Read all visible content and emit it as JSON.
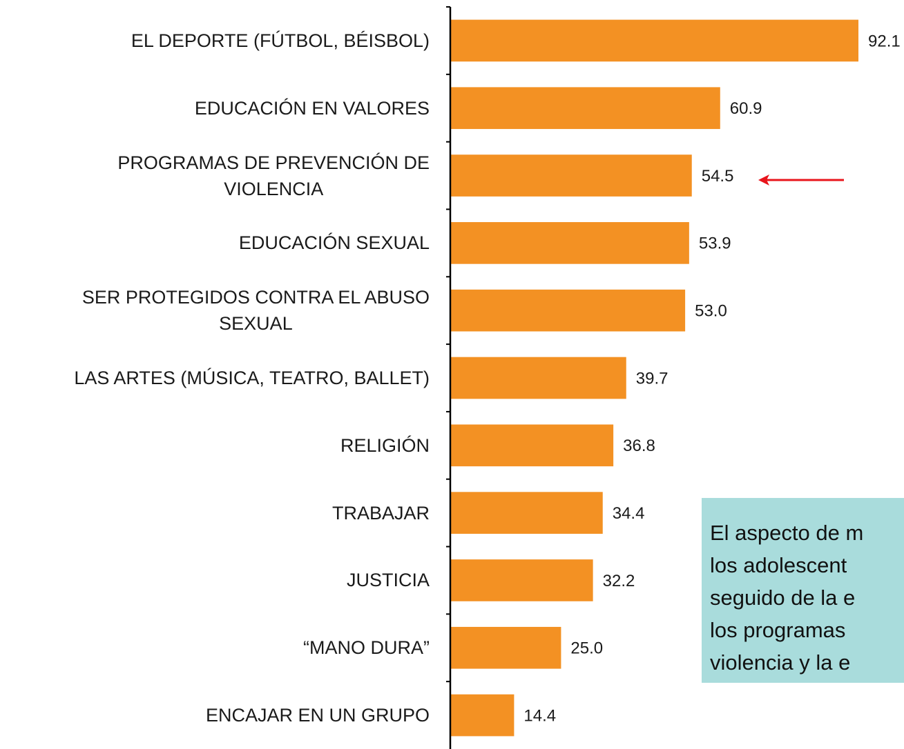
{
  "chart_data": {
    "type": "barh",
    "categories": [
      "EL DEPORTE (FÚTBOL, BÉISBOL)",
      "EDUCACIÓN EN VALORES",
      "PROGRAMAS DE PREVENCIÓN DE\nVIOLENCIA",
      "EDUCACIÓN SEXUAL",
      "SER PROTEGIDOS CONTRA EL ABUSO\nSEXUAL",
      "LAS ARTES (MÚSICA, TEATRO, BALLET)",
      "RELIGIÓN",
      "TRABAJAR",
      "JUSTICIA",
      "“MANO DURA”",
      "ENCAJAR EN UN GRUPO"
    ],
    "values": [
      92.1,
      60.9,
      54.5,
      53.9,
      53.0,
      39.7,
      36.8,
      34.4,
      32.2,
      25.0,
      14.4
    ],
    "value_labels": [
      "92.1",
      "60.9",
      "54.5",
      "53.9",
      "53.0",
      "39.7",
      "36.8",
      "34.4",
      "32.2",
      "25.0",
      "14.4"
    ],
    "color": "#f39123",
    "xlim": [
      0,
      100
    ],
    "annotation": [
      "El aspecto de m",
      "los adolescent",
      "seguido de la e",
      "los programas",
      "violencia y la e"
    ]
  }
}
